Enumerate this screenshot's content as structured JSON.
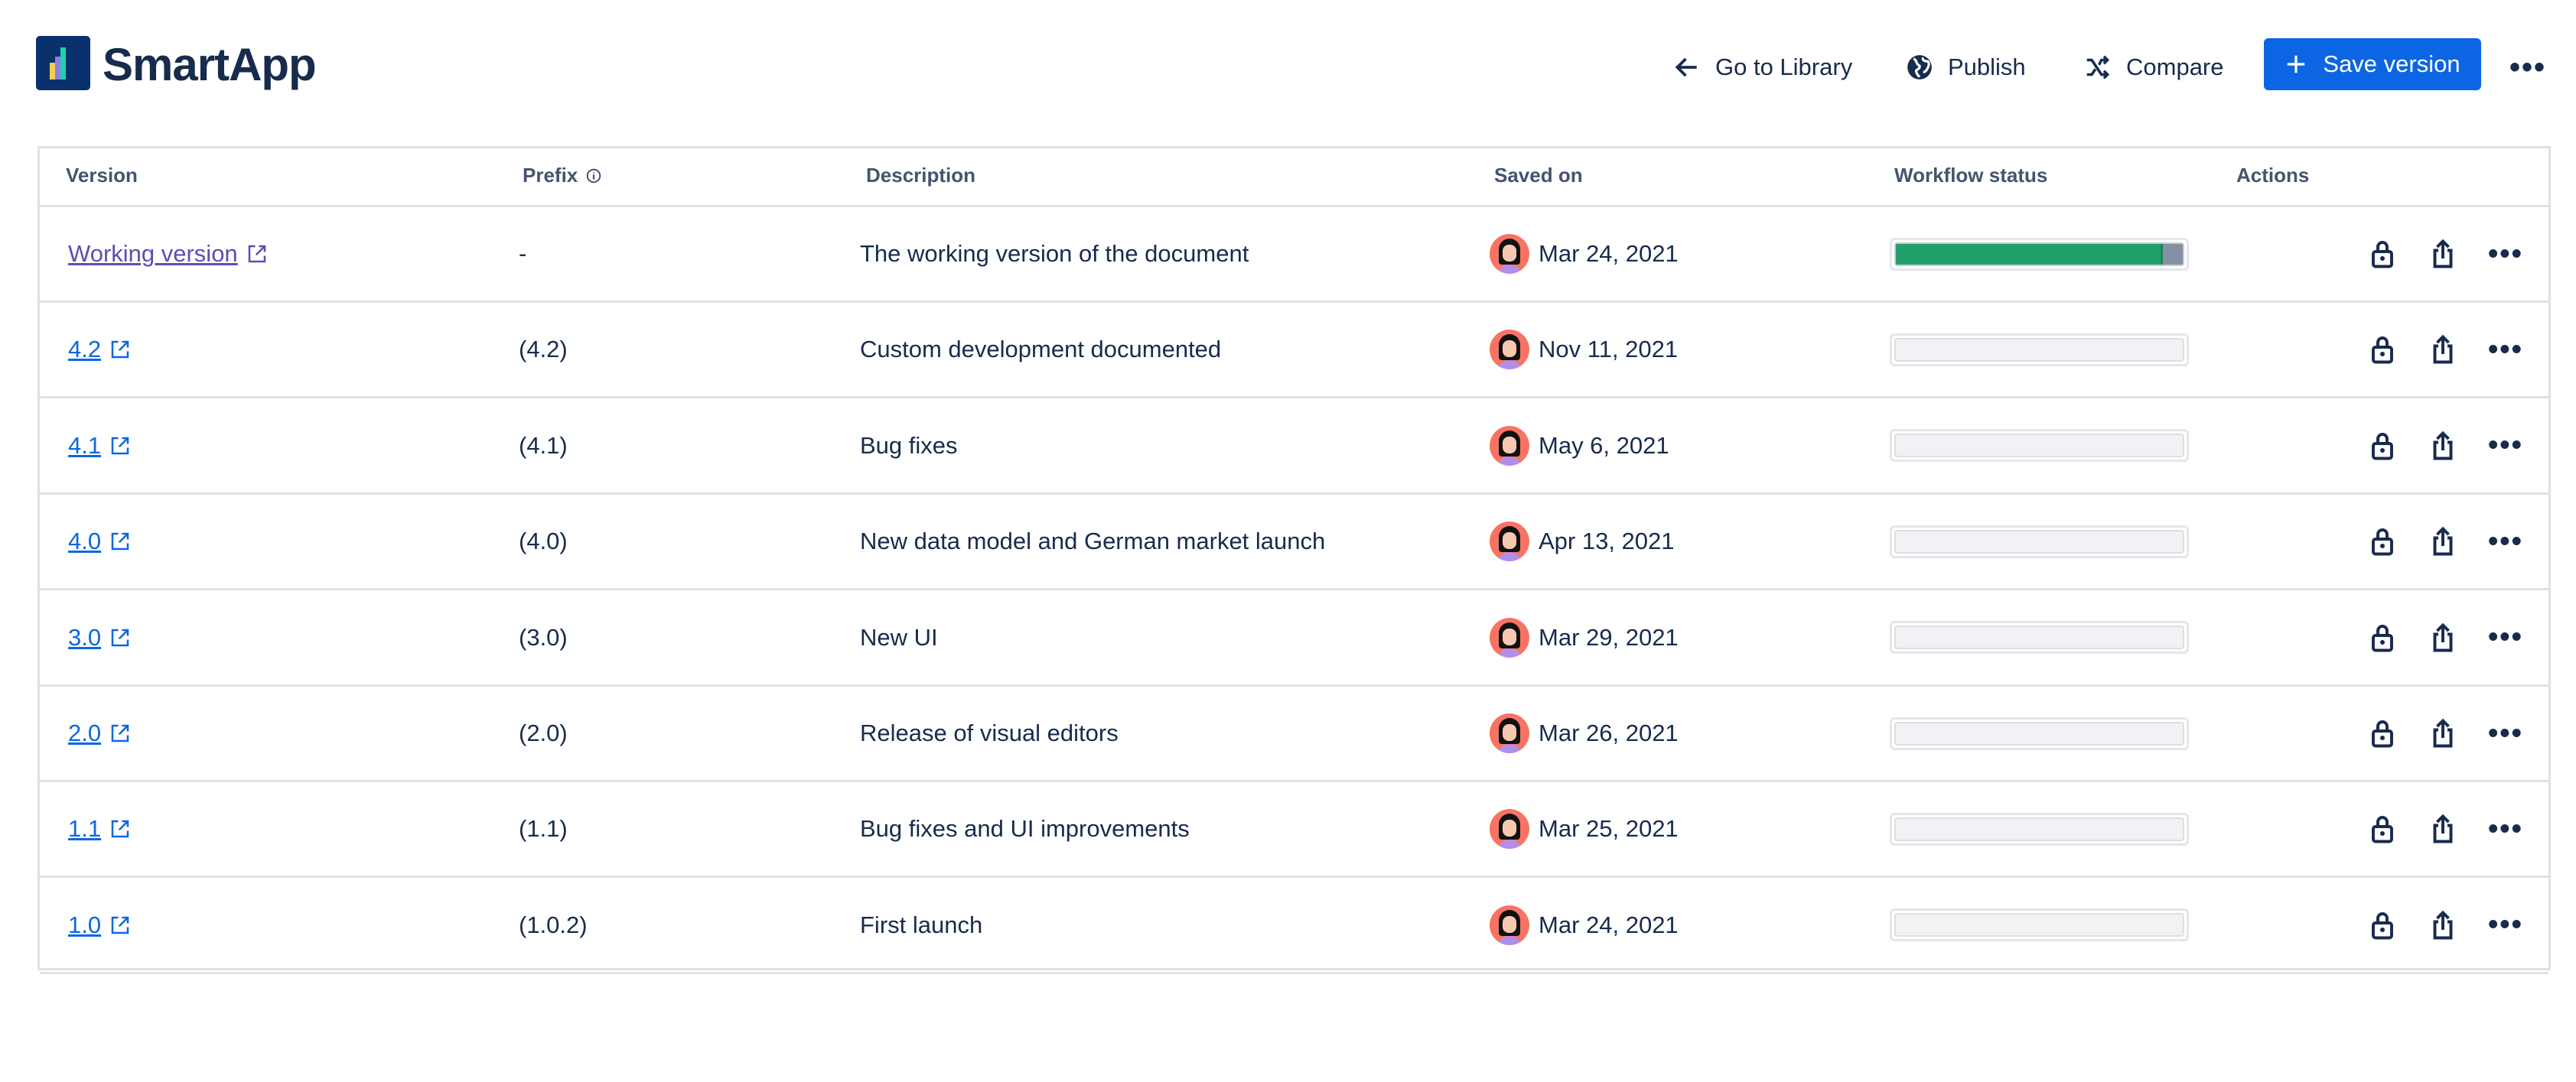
{
  "header": {
    "app_title": "SmartApp",
    "go_to_library": "Go to Library",
    "publish": "Publish",
    "compare": "Compare",
    "save_version": "Save version",
    "more": "•••"
  },
  "colors": {
    "accent": "#0c66e4",
    "progress_done": "#22a06b",
    "progress_rest": "#8590a2",
    "working_link": "#5e4db2"
  },
  "table": {
    "columns": [
      "Version",
      "Prefix",
      "Description",
      "Saved on",
      "Workflow status",
      "Actions"
    ],
    "rows": [
      {
        "version": "Working version",
        "prefix": "-",
        "description": "The working version of the document",
        "saved_on": "Mar 24, 2021",
        "workflow_progress_pct": 93
      },
      {
        "version": "4.2",
        "prefix": "(4.2)",
        "description": "Custom development documented",
        "saved_on": "Nov 11, 2021",
        "workflow_progress_pct": 0
      },
      {
        "version": "4.1",
        "prefix": "(4.1)",
        "description": "Bug fixes",
        "saved_on": "May 6, 2021",
        "workflow_progress_pct": 0
      },
      {
        "version": "4.0",
        "prefix": "(4.0)",
        "description": "New data model and German market launch",
        "saved_on": "Apr 13, 2021",
        "workflow_progress_pct": 0
      },
      {
        "version": "3.0",
        "prefix": "(3.0)",
        "description": "New UI",
        "saved_on": "Mar 29, 2021",
        "workflow_progress_pct": 0
      },
      {
        "version": "2.0",
        "prefix": "(2.0)",
        "description": "Release of visual editors",
        "saved_on": "Mar 26, 2021",
        "workflow_progress_pct": 0
      },
      {
        "version": "1.1",
        "prefix": "(1.1)",
        "description": "Bug fixes and UI improvements",
        "saved_on": "Mar 25, 2021",
        "workflow_progress_pct": 0
      },
      {
        "version": "1.0",
        "prefix": "(1.0.2)",
        "description": "First launch",
        "saved_on": "Mar 24, 2021",
        "workflow_progress_pct": 0
      }
    ],
    "row_more": "•••"
  }
}
